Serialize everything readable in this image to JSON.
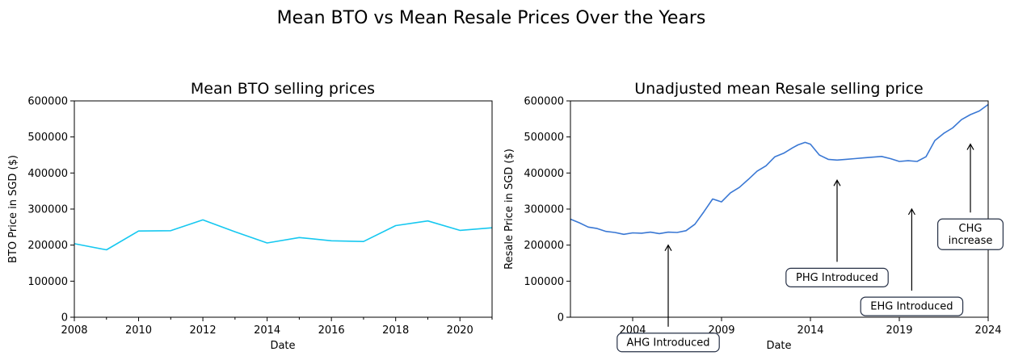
{
  "figure": {
    "title": "Mean BTO vs Mean Resale Prices Over the Years"
  },
  "chart_data": [
    {
      "type": "line",
      "title": "Mean BTO selling prices",
      "xlabel": "Date",
      "ylabel": "BTO Price in SGD ($)",
      "xlim": [
        2008,
        2021
      ],
      "ylim": [
        0,
        600000
      ],
      "xticks": [
        2008,
        2010,
        2012,
        2014,
        2016,
        2018,
        2020
      ],
      "xtick_labels": [
        "2008",
        "2010",
        "2012",
        "2014",
        "2016",
        "2018",
        "2020"
      ],
      "xminor_ticks": [
        2009,
        2011,
        2013,
        2015,
        2017,
        2019,
        2021
      ],
      "yticks": [
        0,
        100000,
        200000,
        300000,
        400000,
        500000,
        600000
      ],
      "ytick_labels": [
        "0",
        "100000",
        "200000",
        "300000",
        "400000",
        "500000",
        "600000"
      ],
      "color": "#16c8f0",
      "series": [
        {
          "x": [
            2008,
            2009,
            2010,
            2011,
            2012,
            2013,
            2014,
            2015,
            2016,
            2017,
            2018,
            2019,
            2020,
            2021
          ],
          "values": [
            204000,
            187000,
            239000,
            240000,
            270000,
            237000,
            206000,
            221000,
            212000,
            210000,
            254000,
            267000,
            241000,
            248000
          ]
        }
      ],
      "annotations": []
    },
    {
      "type": "line",
      "title": "Unadjusted mean Resale selling price",
      "xlabel": "Date",
      "ylabel": "Resale Price in SGD ($)",
      "xlim": [
        2000.5,
        2024
      ],
      "ylim": [
        0,
        600000
      ],
      "xticks": [
        2004,
        2009,
        2014,
        2019,
        2024
      ],
      "xtick_labels": [
        "2004",
        "2009",
        "2014",
        "2019",
        "2024"
      ],
      "yticks": [
        0,
        100000,
        200000,
        300000,
        400000,
        500000,
        600000
      ],
      "ytick_labels": [
        "0",
        "100000",
        "200000",
        "300000",
        "400000",
        "500000",
        "600000"
      ],
      "color": "#3a78d4",
      "series": [
        {
          "x": [
            2000.5,
            2001.0,
            2001.5,
            2002.0,
            2002.5,
            2003.0,
            2003.5,
            2004.0,
            2004.5,
            2005.0,
            2005.5,
            2006.0,
            2006.5,
            2007.0,
            2007.5,
            2008.0,
            2008.5,
            2009.0,
            2009.5,
            2010.0,
            2010.5,
            2011.0,
            2011.5,
            2012.0,
            2012.5,
            2013.0,
            2013.3,
            2013.7,
            2014.0,
            2014.5,
            2015.0,
            2015.5,
            2016.0,
            2016.5,
            2017.0,
            2017.5,
            2018.0,
            2018.5,
            2019.0,
            2019.5,
            2020.0,
            2020.5,
            2021.0,
            2021.5,
            2022.0,
            2022.5,
            2023.0,
            2023.5,
            2024.0
          ],
          "values": [
            272000,
            262000,
            250000,
            246000,
            238000,
            235000,
            230000,
            234000,
            233000,
            236000,
            232000,
            236000,
            235000,
            240000,
            258000,
            292000,
            328000,
            320000,
            345000,
            360000,
            382000,
            405000,
            420000,
            445000,
            455000,
            470000,
            478000,
            485000,
            480000,
            450000,
            438000,
            436000,
            438000,
            440000,
            442000,
            444000,
            446000,
            440000,
            432000,
            434000,
            432000,
            445000,
            490000,
            510000,
            525000,
            548000,
            562000,
            572000,
            590000
          ]
        }
      ],
      "annotations": [
        {
          "text": "AHG Introduced",
          "x": 2006.0,
          "y": 200000,
          "text_x": 2006.0,
          "text_y": -70000
        },
        {
          "text": "PHG Introduced",
          "x": 2015.5,
          "y": 380000,
          "text_x": 2015.5,
          "text_y": 110000
        },
        {
          "text": "EHG Introduced",
          "x": 2019.7,
          "y": 300000,
          "text_x": 2019.7,
          "text_y": 30000
        },
        {
          "text": "CHG\nincrease",
          "x": 2023.0,
          "y": 480000,
          "text_x": 2023.0,
          "text_y": 230000
        }
      ]
    }
  ]
}
